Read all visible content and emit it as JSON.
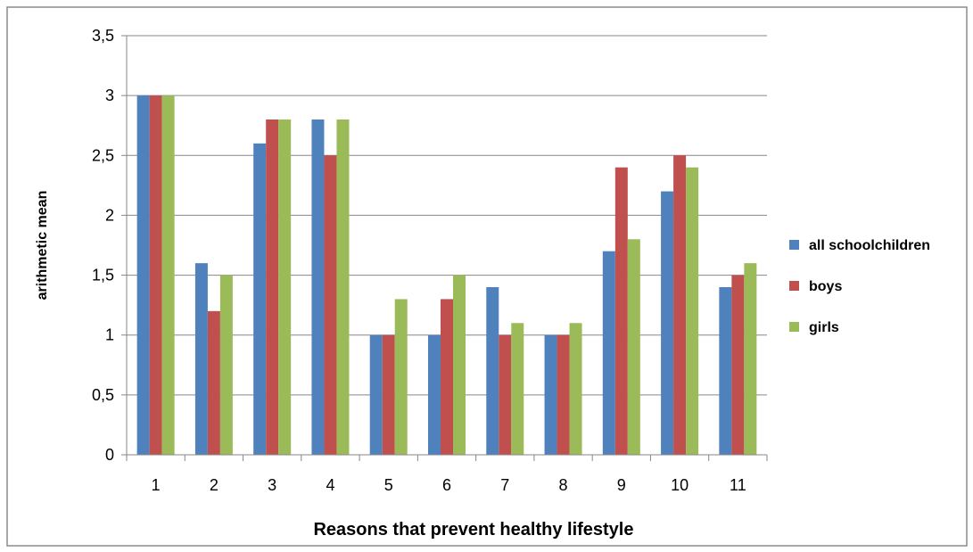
{
  "chart_data": {
    "type": "bar",
    "categories": [
      "1",
      "2",
      "3",
      "4",
      "5",
      "6",
      "7",
      "8",
      "9",
      "10",
      "11"
    ],
    "series": [
      {
        "name": "all schoolchildren",
        "color": "#4F81BD",
        "values": [
          3,
          1.6,
          2.6,
          2.8,
          1,
          1,
          1.4,
          1,
          1.7,
          2.2,
          1.4
        ]
      },
      {
        "name": "boys",
        "color": "#C0504D",
        "values": [
          3,
          1.2,
          2.8,
          2.5,
          1,
          1.3,
          1,
          1,
          2.4,
          2.5,
          1.5
        ]
      },
      {
        "name": "girls",
        "color": "#9BBB59",
        "values": [
          3,
          1.5,
          2.8,
          2.8,
          1.3,
          1.5,
          1.1,
          1.1,
          1.8,
          2.4,
          1.6
        ]
      }
    ],
    "xlabel": "Reasons that prevent healthy lifestyle",
    "ylabel": "arithmetic mean",
    "ylim": [
      0,
      3.5
    ],
    "yticks": [
      "0",
      "0,5",
      "1",
      "1,5",
      "2",
      "2,5",
      "3",
      "3,5"
    ],
    "ytick_values": [
      0,
      0.5,
      1,
      1.5,
      2,
      2.5,
      3,
      3.5
    ],
    "grid": true,
    "legend_position": "right"
  }
}
